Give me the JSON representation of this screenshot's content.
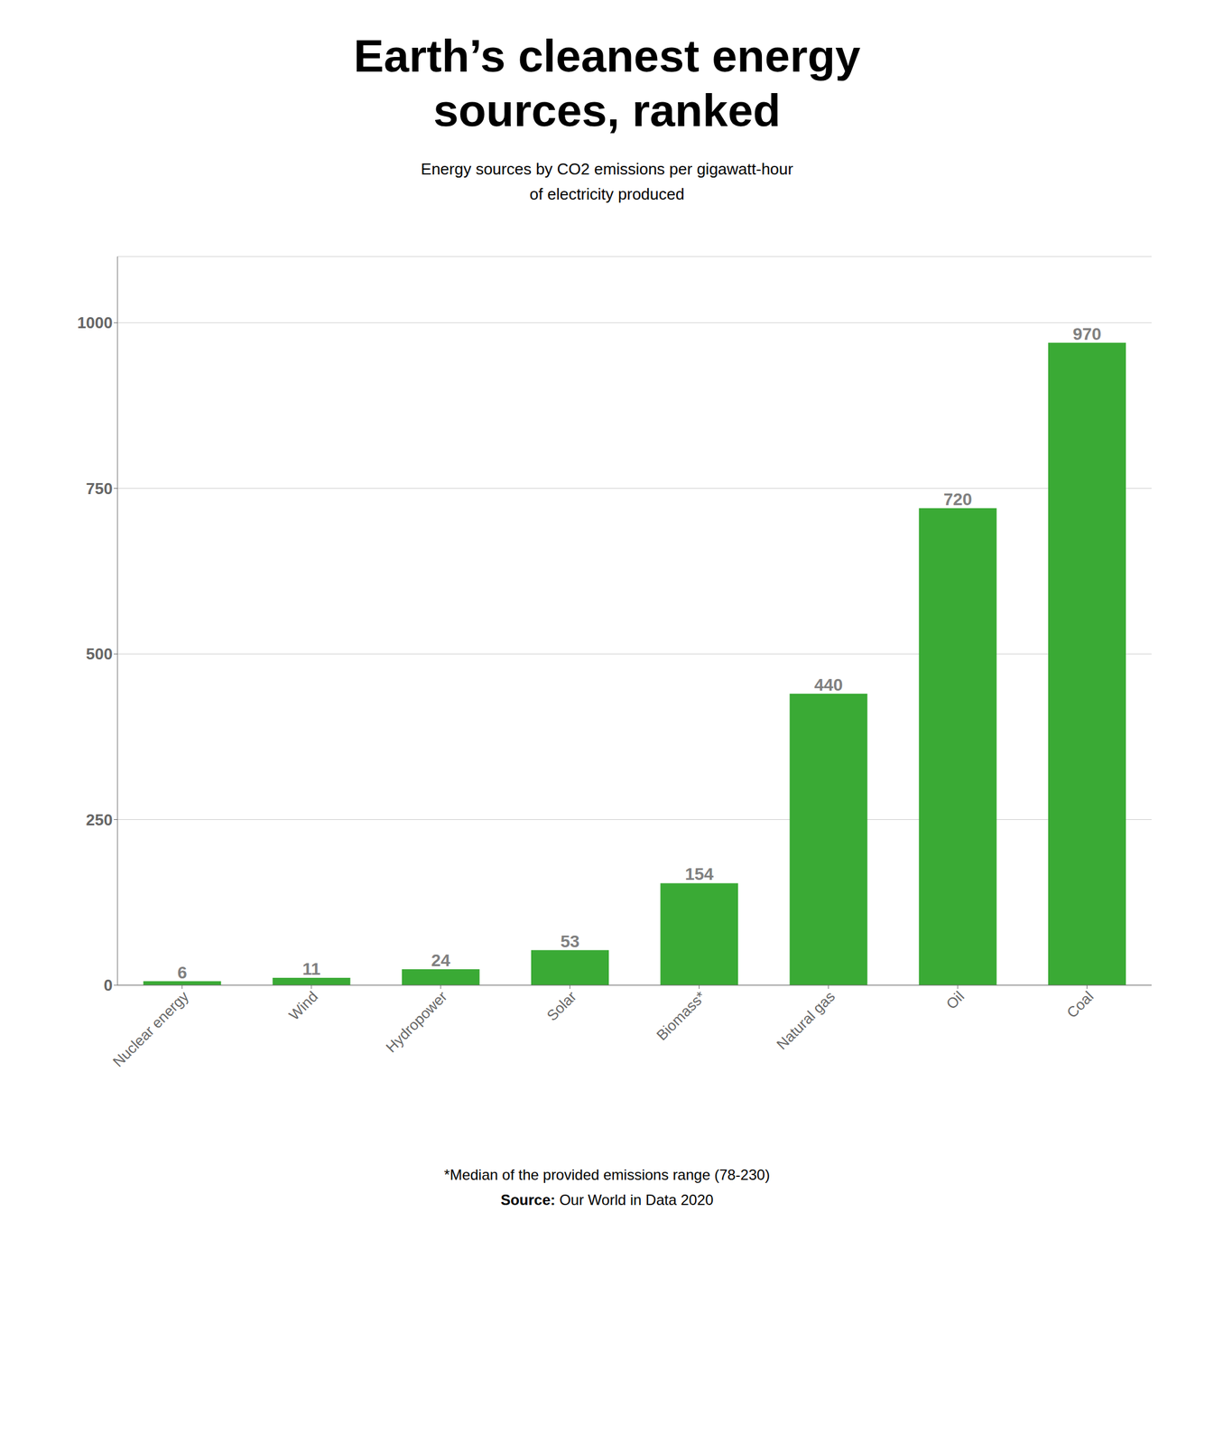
{
  "chart_data": {
    "type": "bar",
    "title": "Earth’s cleanest energy\nsources, ranked",
    "subtitle": "Energy sources by CO2 emissions per gigawatt-hour\nof electricity produced",
    "categories": [
      "Nuclear energy",
      "Wind",
      "Hydropower",
      "Solar",
      "Biomass*",
      "Natural gas",
      "Oil",
      "Coal"
    ],
    "values": [
      6,
      11,
      24,
      53,
      154,
      440,
      720,
      970
    ],
    "color": "#3aaa35",
    "ylim": [
      0,
      1100
    ],
    "yticks": [
      0,
      250,
      500,
      750,
      1000
    ],
    "grid": true,
    "data_labels": true,
    "annotations": [
      "*Median of the provided emissions range (78-230)",
      "Source: Our World in Data 2020"
    ]
  }
}
